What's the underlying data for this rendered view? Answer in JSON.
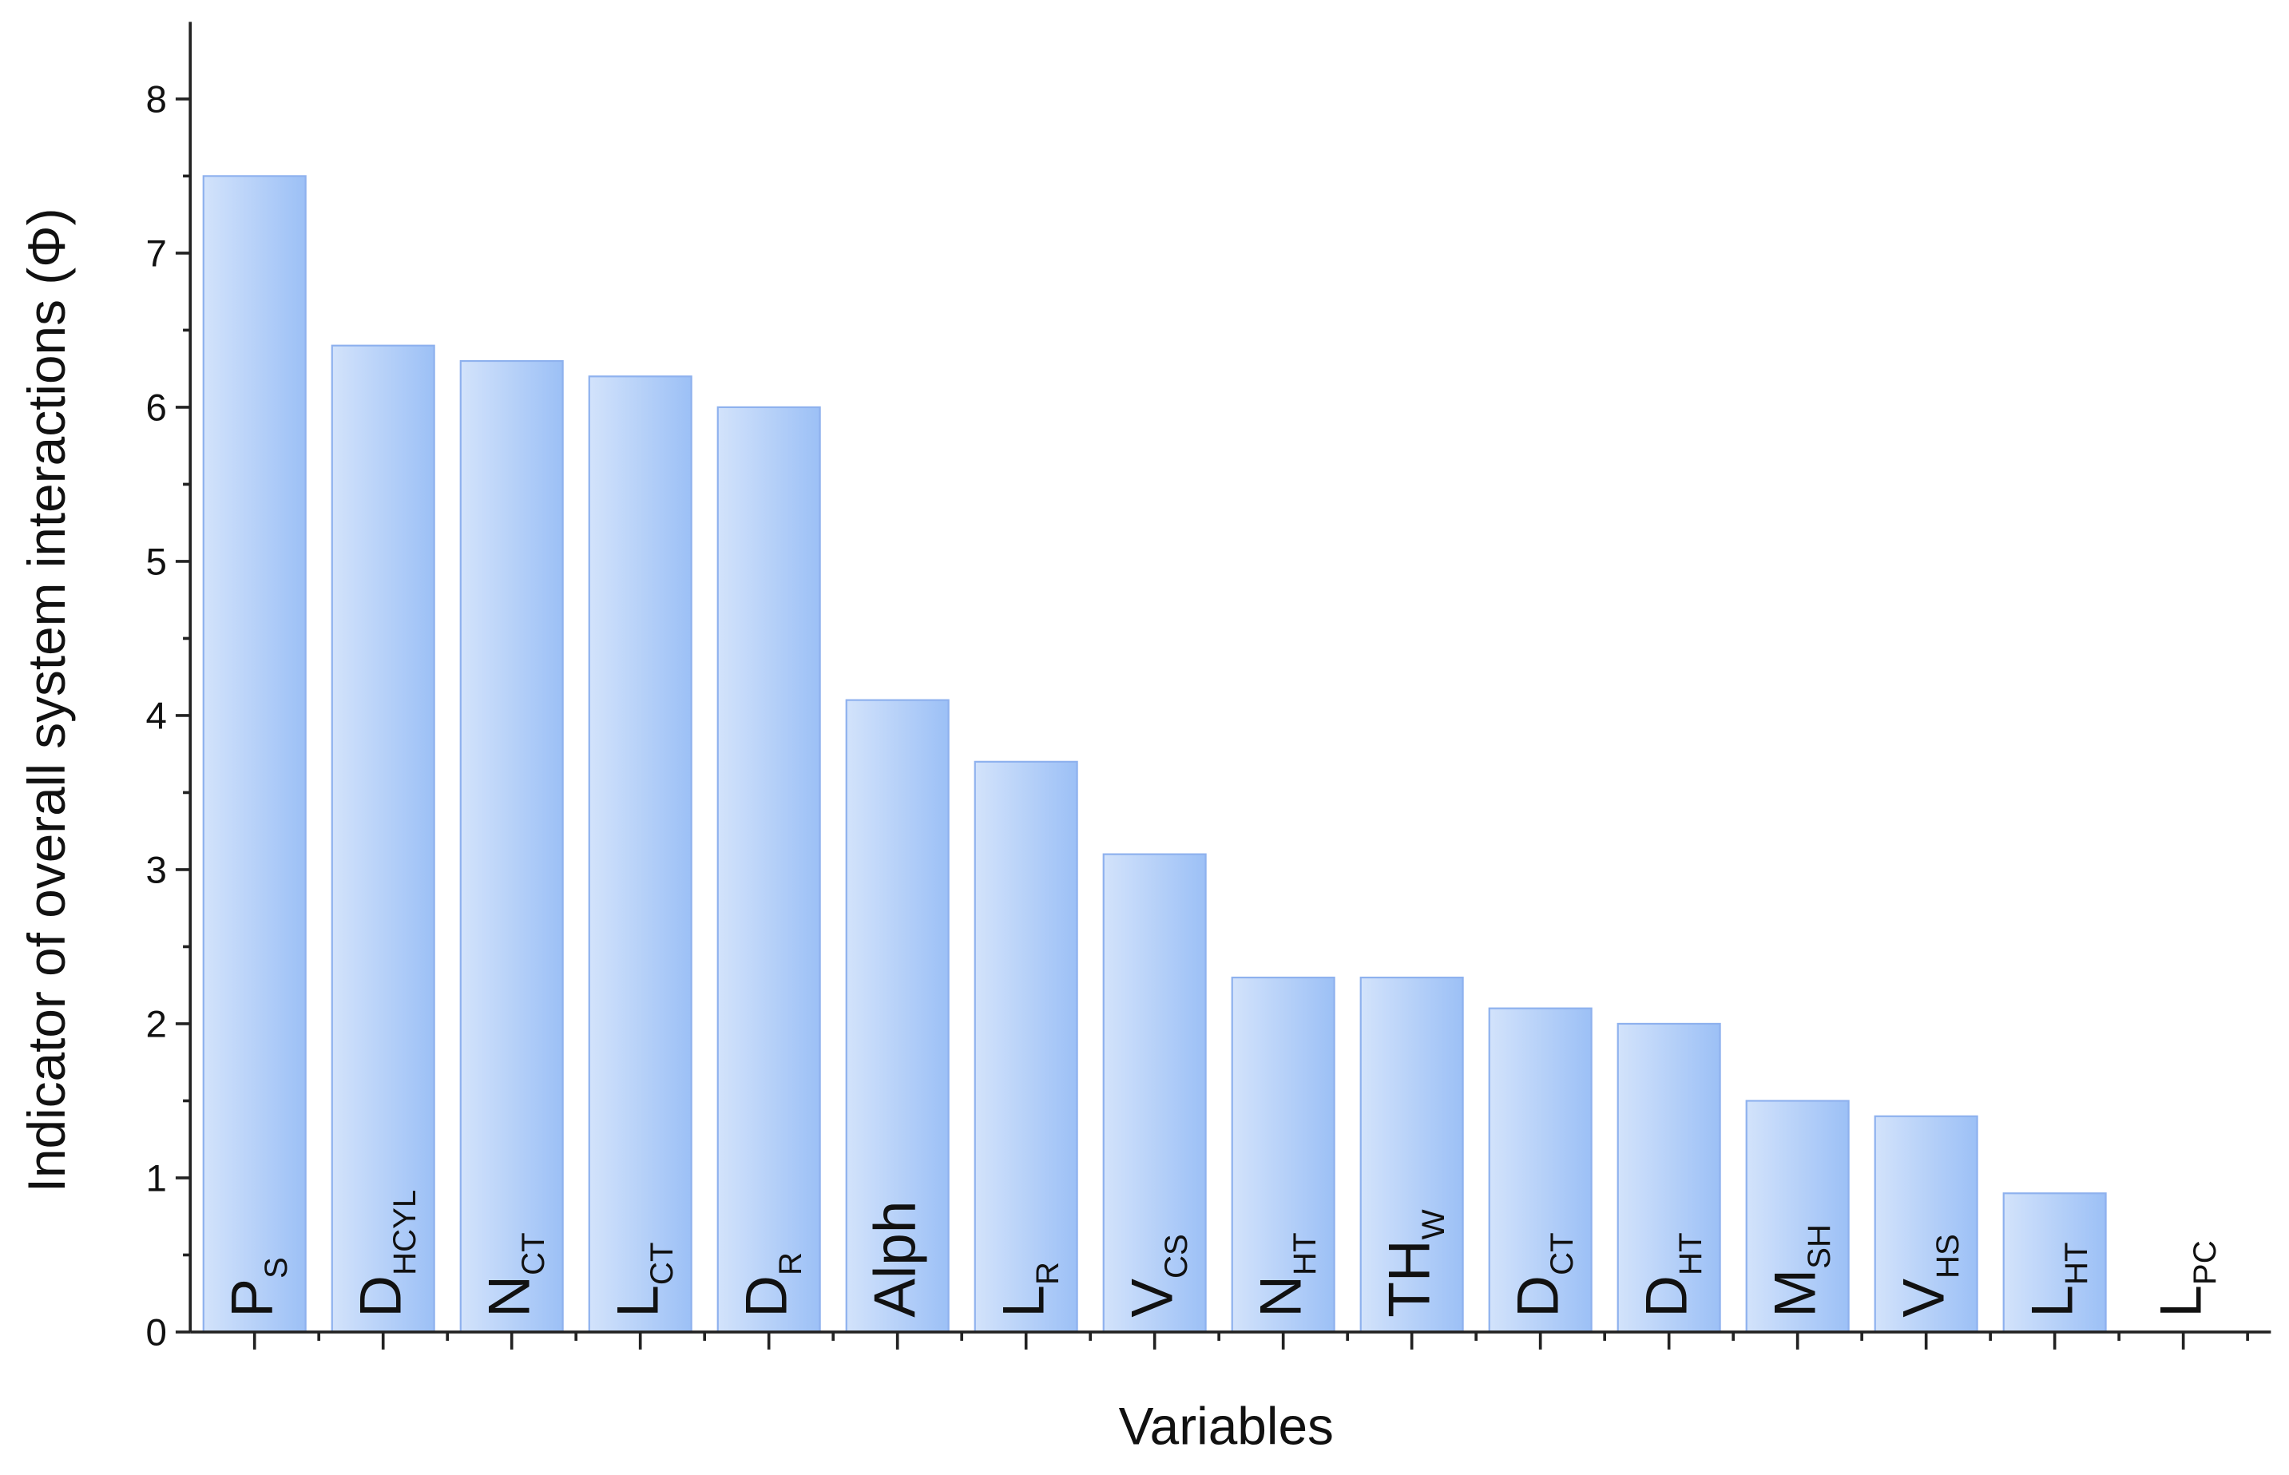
{
  "chart_data": {
    "type": "bar",
    "y_label": "Indicator of overall system interactions (Φ)",
    "x_label": "Variables",
    "categories": [
      {
        "main": "P",
        "sub": "S"
      },
      {
        "main": "D",
        "sub": "HCYL"
      },
      {
        "main": "N",
        "sub": "CT"
      },
      {
        "main": "L",
        "sub": "CT"
      },
      {
        "main": "D",
        "sub": "R"
      },
      {
        "main": "Alph"
      },
      {
        "main": "L",
        "sub": "R"
      },
      {
        "main": "V",
        "sub": "CS"
      },
      {
        "main": "N",
        "sub": "HT"
      },
      {
        "main": "TH",
        "sub": "W"
      },
      {
        "main": "D",
        "sub": "CT"
      },
      {
        "main": "D",
        "sub": "HT"
      },
      {
        "main": "M",
        "sub": "SH"
      },
      {
        "main": "V",
        "sub": "HS"
      },
      {
        "main": "L",
        "sub": "HT"
      },
      {
        "main": "L",
        "sub": "PC"
      }
    ],
    "values": [
      7.5,
      6.4,
      6.3,
      6.2,
      6.0,
      4.1,
      3.7,
      3.1,
      2.3,
      2.3,
      2.1,
      2.0,
      1.5,
      1.4,
      0.9,
      0
    ],
    "color": "#9cc0f6",
    "ylim": [
      0,
      8.5
    ],
    "yticks": [
      0,
      1,
      2,
      3,
      4,
      5,
      6,
      7,
      8
    ]
  }
}
